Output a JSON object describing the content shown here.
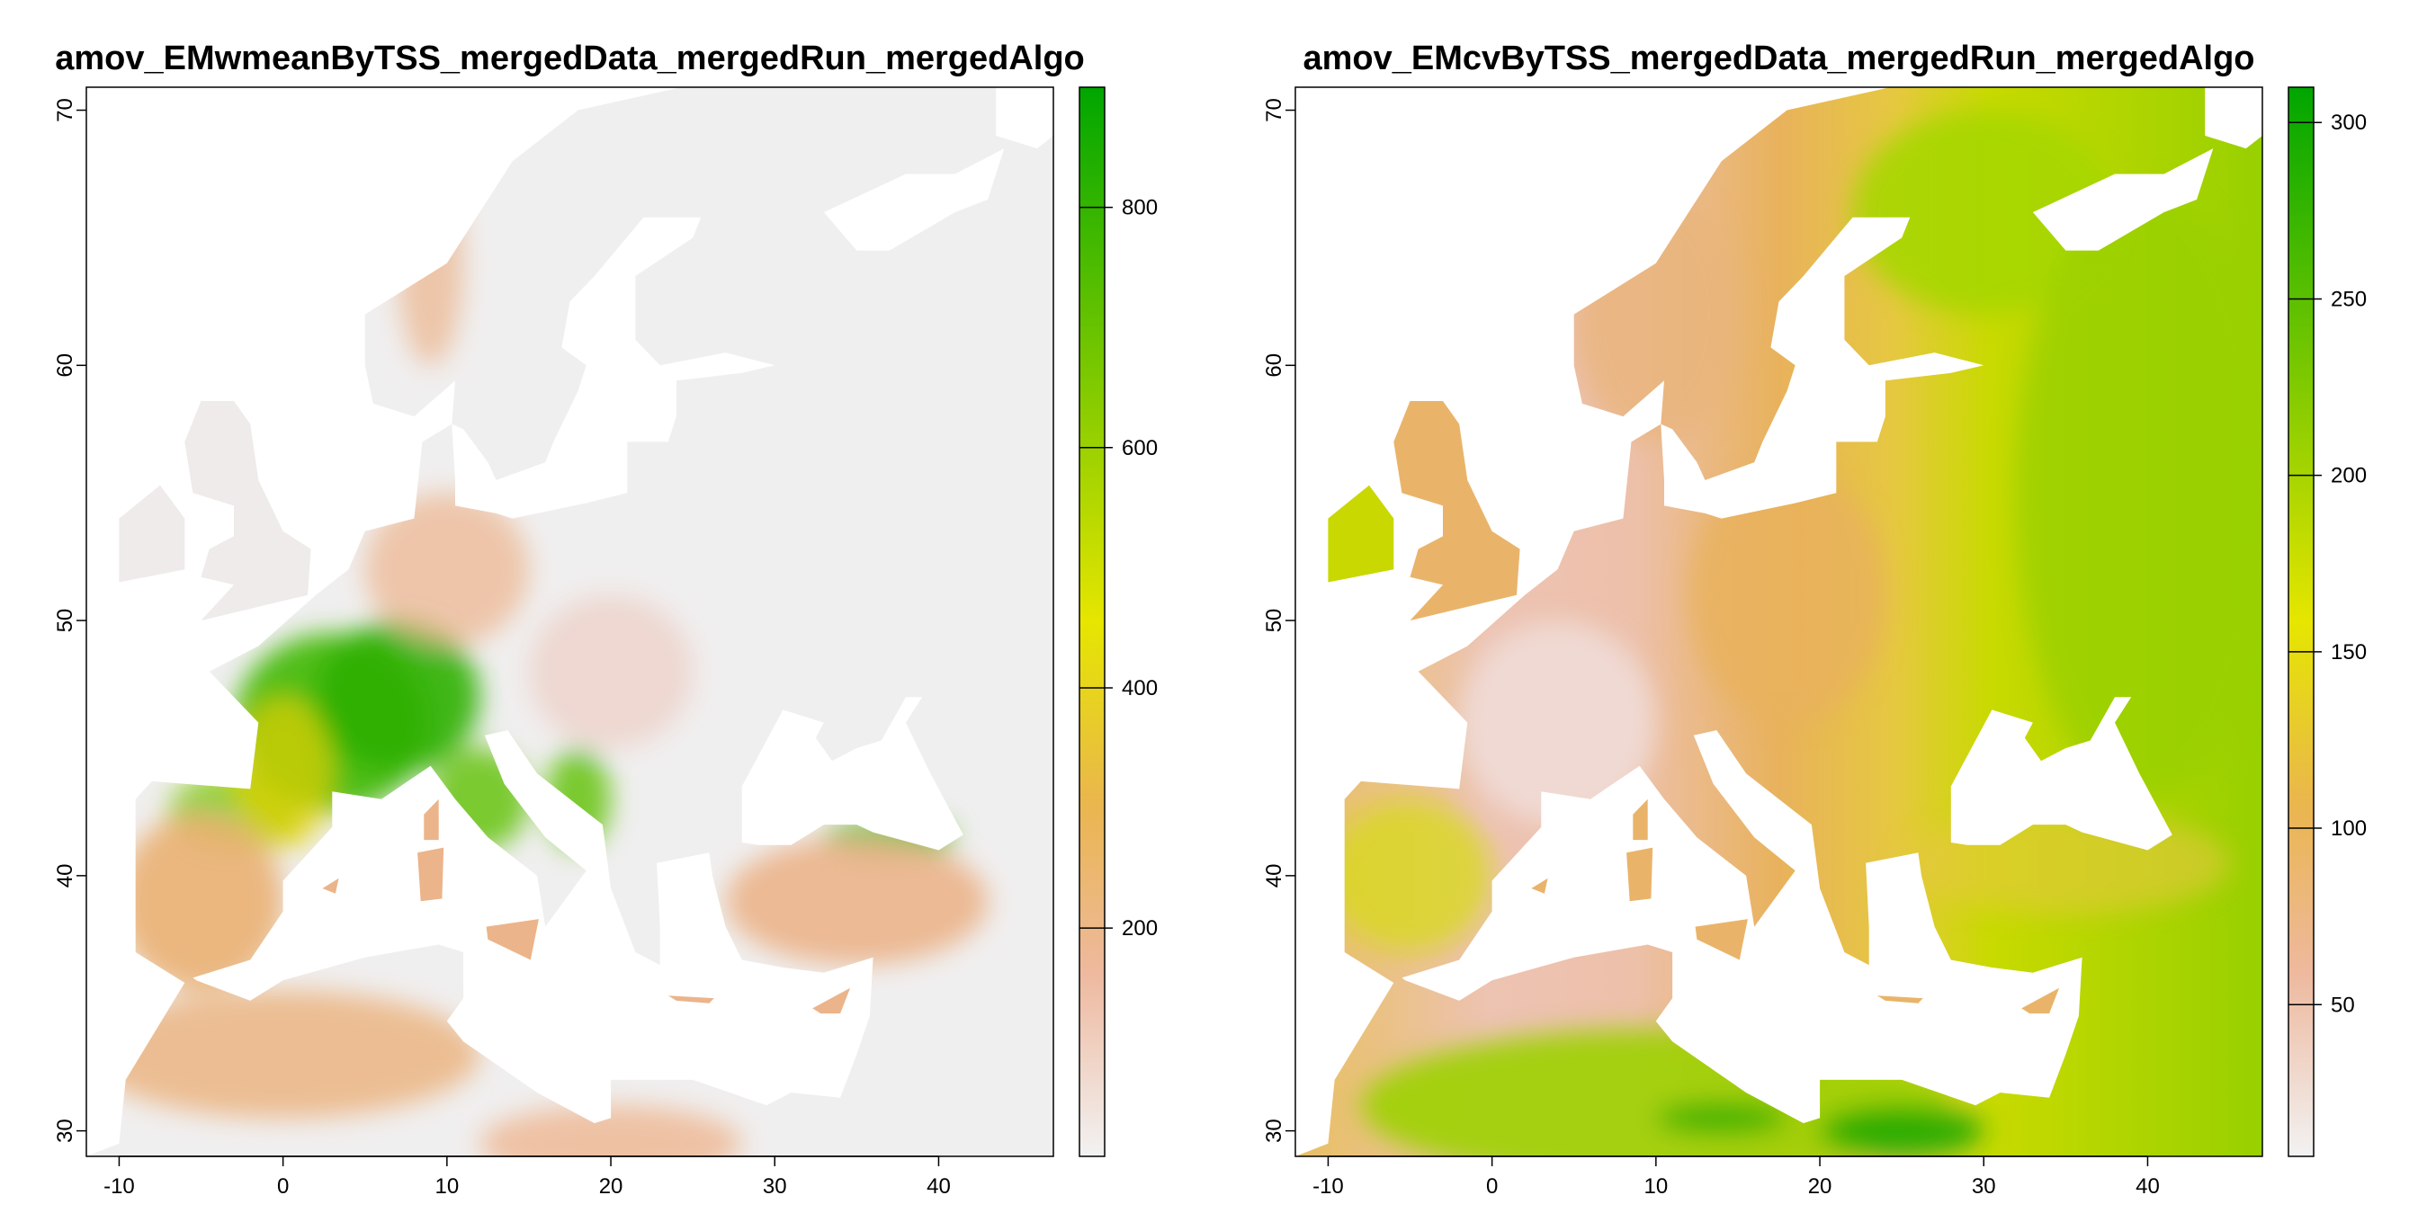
{
  "chart_data": [
    {
      "type": "heatmap",
      "title": "amov_EMwmeanByTSS_mergedData_mergedRun_mergedAlgo",
      "xlabel": "",
      "ylabel": "",
      "xlim": [
        -12,
        47
      ],
      "ylim": [
        29,
        70.9
      ],
      "x_ticks": [
        -10,
        0,
        10,
        20,
        30,
        40
      ],
      "x_tick_labels": [
        "-10",
        "0",
        "10",
        "20",
        "30",
        "40"
      ],
      "y_ticks": [
        30,
        40,
        50,
        60,
        70
      ],
      "y_tick_labels": [
        "30",
        "40",
        "50",
        "60",
        "70"
      ],
      "legend": {
        "placement": "right",
        "range": [
          10,
          900
        ],
        "ticks": [
          200,
          400,
          600,
          800
        ],
        "tick_labels": [
          "200",
          "400",
          "600",
          "800"
        ],
        "colors": [
          "#F2F2F2",
          "#EEB99F",
          "#EAB64E",
          "#E6E600",
          "#00A600"
        ]
      }
    },
    {
      "type": "heatmap",
      "title": "amov_EMcvByTSS_mergedData_mergedRun_mergedAlgo",
      "xlabel": "",
      "ylabel": "",
      "xlim": [
        -12,
        47
      ],
      "ylim": [
        29,
        70.9
      ],
      "x_ticks": [
        -10,
        0,
        10,
        20,
        30,
        40
      ],
      "x_tick_labels": [
        "-10",
        "0",
        "10",
        "20",
        "30",
        "40"
      ],
      "y_ticks": [
        30,
        40,
        50,
        60,
        70
      ],
      "y_tick_labels": [
        "30",
        "40",
        "50",
        "60",
        "70"
      ],
      "legend": {
        "placement": "right",
        "range": [
          7,
          310
        ],
        "ticks": [
          50,
          100,
          150,
          200,
          250,
          300
        ],
        "tick_labels": [
          "50",
          "100",
          "150",
          "200",
          "250",
          "300"
        ],
        "colors": [
          "#F2F2F2",
          "#EEB99F",
          "#EAB64E",
          "#E6E600",
          "#00A600"
        ]
      }
    }
  ]
}
